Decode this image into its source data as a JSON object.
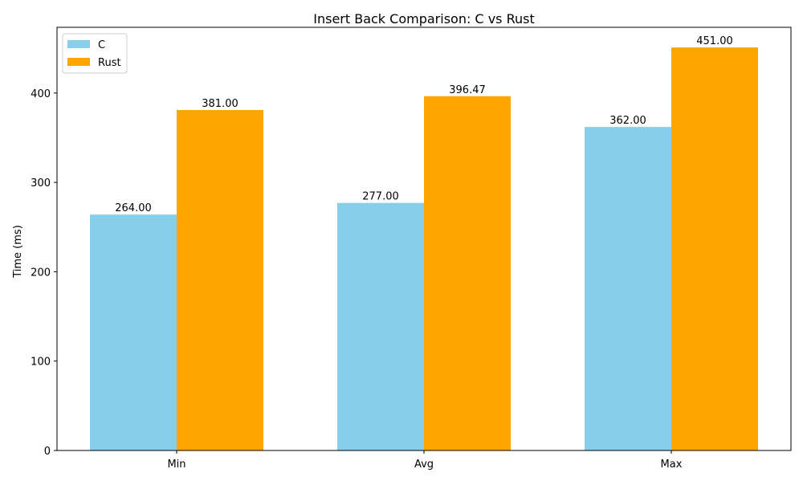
{
  "chart_data": {
    "type": "bar",
    "title": "Insert Back Comparison: C vs Rust",
    "xlabel": "",
    "ylabel": "Time (ms)",
    "categories": [
      "Min",
      "Avg",
      "Max"
    ],
    "series": [
      {
        "name": "C",
        "color": "#87CEEB",
        "values": [
          264.0,
          277.0,
          362.0
        ],
        "labels": [
          "264.00",
          "277.00",
          "362.00"
        ]
      },
      {
        "name": "Rust",
        "color": "#FFA500",
        "values": [
          381.0,
          396.47,
          451.0
        ],
        "labels": [
          "381.00",
          "396.47",
          "451.00"
        ]
      }
    ],
    "ylim": [
      0,
      473.55
    ],
    "yticks": [
      0,
      100,
      200,
      300,
      400
    ],
    "grid": false,
    "legend_position": "top-left"
  }
}
